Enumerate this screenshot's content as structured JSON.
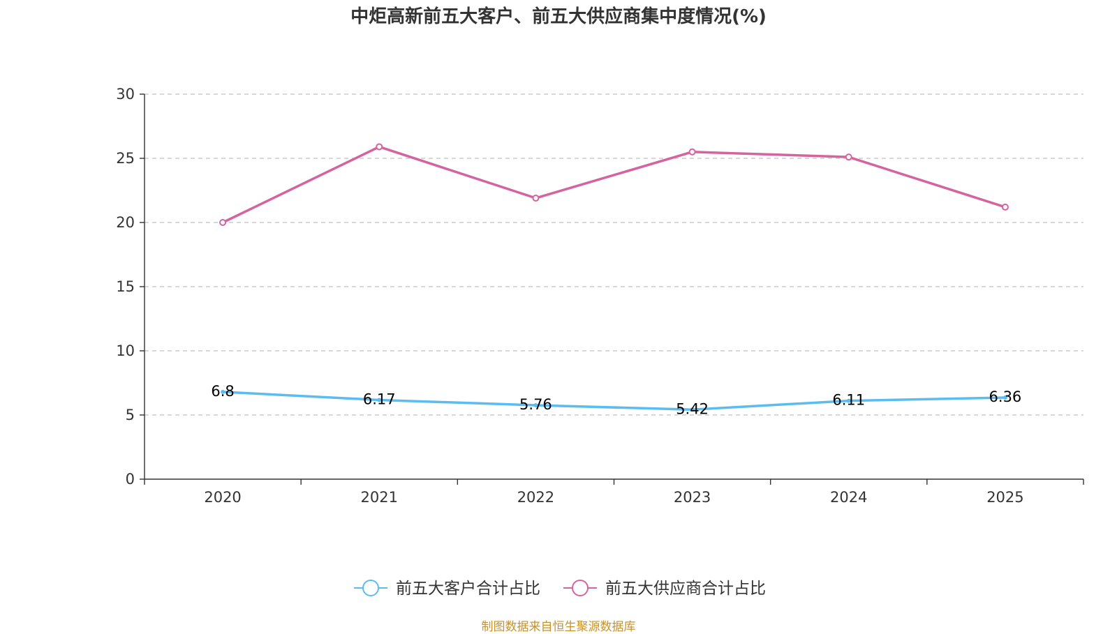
{
  "chart_data": {
    "type": "line",
    "title": "中炬高新前五大客户、前五大供应商集中度情况(%)",
    "categories": [
      "2020",
      "2021",
      "2022",
      "2023",
      "2024",
      "2025"
    ],
    "ylim": [
      0,
      30
    ],
    "yticks": [
      0,
      5,
      10,
      15,
      20,
      25,
      30
    ],
    "grid": true,
    "legend_position": "bottom",
    "series": [
      {
        "name": "前五大客户合计占比",
        "color": "#5bbcf0",
        "values": [
          6.8,
          6.17,
          5.76,
          5.42,
          6.11,
          6.36
        ],
        "labels": [
          "6.8",
          "6.17",
          "5.76",
          "5.42",
          "6.11",
          "6.36"
        ],
        "show_labels": true
      },
      {
        "name": "前五大供应商合计占比",
        "color": "#d4649f",
        "values": [
          20.0,
          25.9,
          21.9,
          25.5,
          25.1,
          21.2
        ],
        "values_approximate": true,
        "show_labels": false
      }
    ]
  },
  "source_note": "制图数据来自恒生聚源数据库"
}
